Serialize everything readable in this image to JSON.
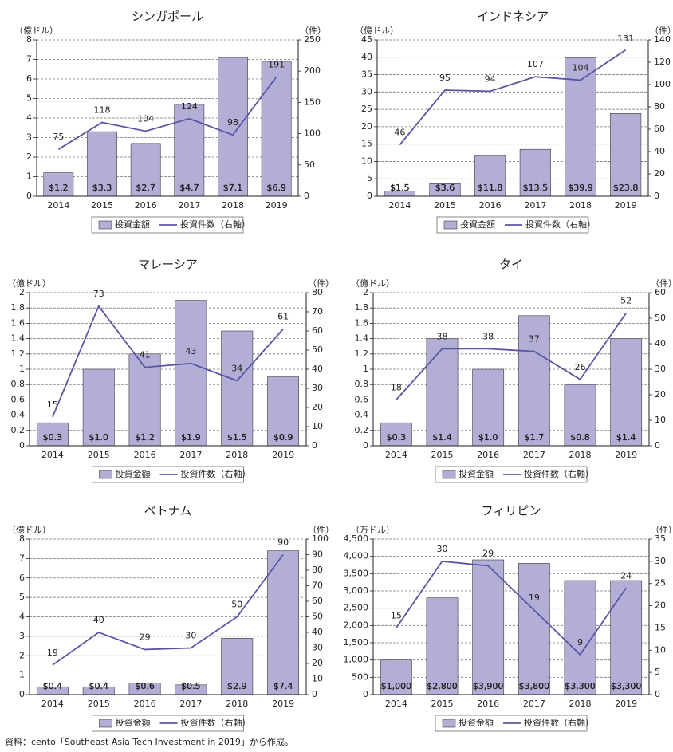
{
  "colors": {
    "bar": "#b3aed6",
    "bar_stroke": "#3a3a3a",
    "line": "#5b55a6",
    "grid": "#777777",
    "text": "#231f20"
  },
  "legend": {
    "bar_label": "投資金額",
    "line_label": "投資件数（右軸）"
  },
  "source": "資料：cento「Southeast Asia Tech Investment in 2019」から作成。",
  "chart_data": [
    {
      "type": "bar",
      "title": "シンガポール",
      "ylabel": "（億ドル）",
      "y2label": "（件）",
      "categories": [
        "2014",
        "2015",
        "2016",
        "2017",
        "2018",
        "2019"
      ],
      "ylim": [
        0,
        8
      ],
      "yticks": [
        "0",
        "1",
        "2",
        "3",
        "4",
        "5",
        "6",
        "7",
        "8"
      ],
      "y2lim": [
        0,
        250
      ],
      "y2ticks": [
        "0",
        "50",
        "100",
        "150",
        "200",
        "250"
      ],
      "series": [
        {
          "kind": "bar",
          "values": [
            1.2,
            3.3,
            2.7,
            4.7,
            7.1,
            6.9
          ],
          "labels": [
            "$1.2",
            "$3.3",
            "$2.7",
            "$4.7",
            "$7.1",
            "$6.9"
          ]
        },
        {
          "kind": "line",
          "axis": "right",
          "values": [
            75,
            118,
            104,
            124,
            98,
            191
          ],
          "labels": [
            "75",
            "118",
            "104",
            "124",
            "98",
            "191"
          ]
        }
      ]
    },
    {
      "type": "bar",
      "title": "インドネシア",
      "ylabel": "（億ドル）",
      "y2label": "（件）",
      "categories": [
        "2014",
        "2015",
        "2016",
        "2017",
        "2018",
        "2019"
      ],
      "ylim": [
        0,
        45
      ],
      "yticks": [
        "0",
        "5",
        "10",
        "15",
        "20",
        "25",
        "30",
        "35",
        "40",
        "45"
      ],
      "y2lim": [
        0,
        140
      ],
      "y2ticks": [
        "0",
        "20",
        "40",
        "60",
        "80",
        "100",
        "120",
        "140"
      ],
      "series": [
        {
          "kind": "bar",
          "values": [
            1.5,
            3.6,
            11.8,
            13.5,
            39.9,
            23.8
          ],
          "labels": [
            "$1.5",
            "$3.6",
            "$11.8",
            "$13.5",
            "$39.9",
            "$23.8"
          ]
        },
        {
          "kind": "line",
          "axis": "right",
          "values": [
            46,
            95,
            94,
            107,
            104,
            131
          ],
          "labels": [
            "46",
            "95",
            "94",
            "107",
            "104",
            "131"
          ]
        }
      ]
    },
    {
      "type": "bar",
      "title": "マレーシア",
      "ylabel": "（億ドル）",
      "y2label": "（件）",
      "categories": [
        "2014",
        "2015",
        "2016",
        "2017",
        "2018",
        "2019"
      ],
      "ylim": [
        0,
        2
      ],
      "yticks": [
        "0",
        "0.2",
        "0.4",
        "0.6",
        "0.8",
        "1",
        "1.2",
        "1.4",
        "1.6",
        "1.8",
        "2"
      ],
      "y2lim": [
        0,
        80
      ],
      "y2ticks": [
        "0",
        "10",
        "20",
        "30",
        "40",
        "50",
        "60",
        "70",
        "80"
      ],
      "series": [
        {
          "kind": "bar",
          "values": [
            0.3,
            1.0,
            1.2,
            1.9,
            1.5,
            0.9
          ],
          "labels": [
            "$0.3",
            "$1.0",
            "$1.2",
            "$1.9",
            "$1.5",
            "$0.9"
          ]
        },
        {
          "kind": "line",
          "axis": "right",
          "values": [
            15,
            73,
            41,
            43,
            34,
            61
          ],
          "labels": [
            "15",
            "73",
            "41",
            "43",
            "34",
            "61"
          ]
        }
      ]
    },
    {
      "type": "bar",
      "title": "タイ",
      "ylabel": "（億ドル）",
      "y2label": "（件）",
      "categories": [
        "2014",
        "2015",
        "2016",
        "2017",
        "2018",
        "2019"
      ],
      "ylim": [
        0,
        2
      ],
      "yticks": [
        "0",
        "0.2",
        "0.4",
        "0.6",
        "0.8",
        "1",
        "1.2",
        "1.4",
        "1.6",
        "1.8",
        "2"
      ],
      "y2lim": [
        0,
        60
      ],
      "y2ticks": [
        "0",
        "10",
        "20",
        "30",
        "40",
        "50",
        "60"
      ],
      "series": [
        {
          "kind": "bar",
          "values": [
            0.3,
            1.4,
            1.0,
            1.7,
            0.8,
            1.4
          ],
          "labels": [
            "$0.3",
            "$1.4",
            "$1.0",
            "$1.7",
            "$0.8",
            "$1.4"
          ]
        },
        {
          "kind": "line",
          "axis": "right",
          "values": [
            18,
            38,
            38,
            37,
            26,
            52
          ],
          "labels": [
            "18",
            "38",
            "38",
            "37",
            "26",
            "52"
          ]
        }
      ]
    },
    {
      "type": "bar",
      "title": "ベトナム",
      "ylabel": "（億ドル）",
      "y2label": "（件）",
      "categories": [
        "2014",
        "2015",
        "2016",
        "2017",
        "2018",
        "2019"
      ],
      "ylim": [
        0,
        8
      ],
      "yticks": [
        "0",
        "1",
        "2",
        "3",
        "4",
        "5",
        "6",
        "7",
        "8"
      ],
      "y2lim": [
        0,
        100
      ],
      "y2ticks": [
        "0",
        "10",
        "20",
        "30",
        "40",
        "50",
        "60",
        "70",
        "80",
        "90",
        "100"
      ],
      "series": [
        {
          "kind": "bar",
          "values": [
            0.4,
            0.4,
            0.6,
            0.5,
            2.9,
            7.4
          ],
          "labels": [
            "$0.4",
            "$0.4",
            "$0.6",
            "$0.5",
            "$2.9",
            "$7.4"
          ]
        },
        {
          "kind": "line",
          "axis": "right",
          "values": [
            19,
            40,
            29,
            30,
            50,
            90
          ],
          "labels": [
            "19",
            "40",
            "29",
            "30",
            "50",
            "90"
          ]
        }
      ]
    },
    {
      "type": "bar",
      "title": "フィリピン",
      "ylabel": "（万ドル）",
      "y2label": "（件）",
      "categories": [
        "2014",
        "2015",
        "2016",
        "2017",
        "2018",
        "2019"
      ],
      "ylim": [
        0,
        4500
      ],
      "yticks": [
        "0",
        "500",
        "1,000",
        "1,500",
        "2,000",
        "2,500",
        "3,000",
        "3,500",
        "4,000",
        "4,500"
      ],
      "y2lim": [
        0,
        35
      ],
      "y2ticks": [
        "0",
        "5",
        "10",
        "15",
        "20",
        "25",
        "30",
        "35"
      ],
      "series": [
        {
          "kind": "bar",
          "values": [
            1000,
            2800,
            3900,
            3800,
            3300,
            3300
          ],
          "labels": [
            "$1,000",
            "$2,800",
            "$3,900",
            "$3,800",
            "$3,300",
            "$3,300"
          ]
        },
        {
          "kind": "line",
          "axis": "right",
          "values": [
            15,
            30,
            29,
            19,
            9,
            24
          ],
          "labels": [
            "15",
            "30",
            "29",
            "19",
            "9",
            "24"
          ]
        }
      ]
    }
  ]
}
